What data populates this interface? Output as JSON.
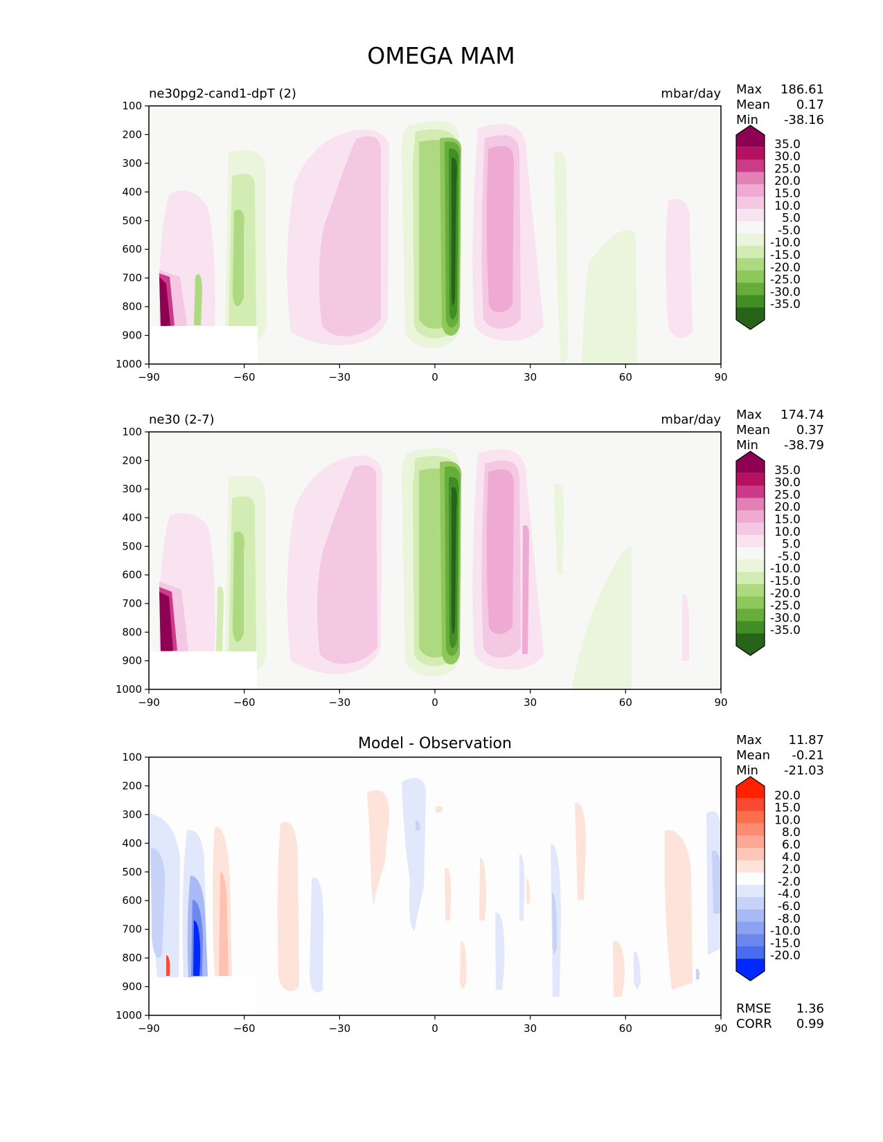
{
  "title": "OMEGA MAM",
  "chart_data": [
    {
      "type": "contour",
      "title": "ne30pg2-cand1-dpT (2)",
      "units": "mbar/day",
      "x_ticks": [
        "−90",
        "−60",
        "−30",
        "0",
        "30",
        "60",
        "90"
      ],
      "y_ticks": [
        "100",
        "200",
        "300",
        "400",
        "500",
        "600",
        "700",
        "800",
        "900",
        "1000"
      ],
      "xlim": [
        -90,
        90
      ],
      "ylim": [
        1000,
        100
      ],
      "stats": {
        "max_label": "Max",
        "max": "186.61",
        "mean_label": "Mean",
        "mean": "0.17",
        "min_label": "Min",
        "min": "-38.16"
      },
      "colorbar": {
        "labels": [
          "35.0",
          "30.0",
          "25.0",
          "20.0",
          "15.0",
          "10.0",
          "5.0",
          "-5.0",
          "-10.0",
          "-15.0",
          "-20.0",
          "-25.0",
          "-30.0",
          "-35.0"
        ],
        "colors": [
          "#8e0152",
          "#b5115e",
          "#cc3a8a",
          "#e181b6",
          "#eeaad2",
          "#f4c7e2",
          "#f9e3f0",
          "#f7f7f7",
          "#eaf5dc",
          "#d2ecb3",
          "#add981",
          "#8ec75c",
          "#68ad3c",
          "#3f8f26",
          "#276419"
        ]
      }
    },
    {
      "type": "contour",
      "title": "ne30 (2-7)",
      "units": "mbar/day",
      "x_ticks": [
        "−90",
        "−60",
        "−30",
        "0",
        "30",
        "60",
        "90"
      ],
      "y_ticks": [
        "100",
        "200",
        "300",
        "400",
        "500",
        "600",
        "700",
        "800",
        "900",
        "1000"
      ],
      "xlim": [
        -90,
        90
      ],
      "ylim": [
        1000,
        100
      ],
      "stats": {
        "max_label": "Max",
        "max": "174.74",
        "mean_label": "Mean",
        "mean": "0.37",
        "min_label": "Min",
        "min": "-38.79"
      },
      "colorbar": {
        "labels": [
          "35.0",
          "30.0",
          "25.0",
          "20.0",
          "15.0",
          "10.0",
          "5.0",
          "-5.0",
          "-10.0",
          "-15.0",
          "-20.0",
          "-25.0",
          "-30.0",
          "-35.0"
        ],
        "colors": [
          "#8e0152",
          "#b5115e",
          "#cc3a8a",
          "#e181b6",
          "#eeaad2",
          "#f4c7e2",
          "#f9e3f0",
          "#f7f7f7",
          "#eaf5dc",
          "#d2ecb3",
          "#add981",
          "#8ec75c",
          "#68ad3c",
          "#3f8f26",
          "#276419"
        ]
      }
    },
    {
      "type": "contour",
      "title": "Model - Observation",
      "x_ticks": [
        "−90",
        "−60",
        "−30",
        "0",
        "30",
        "60",
        "90"
      ],
      "y_ticks": [
        "100",
        "200",
        "300",
        "400",
        "500",
        "600",
        "700",
        "800",
        "900",
        "1000"
      ],
      "xlim": [
        -90,
        90
      ],
      "ylim": [
        1000,
        100
      ],
      "stats": {
        "max_label": "Max",
        "max": "11.87",
        "mean_label": "Mean",
        "mean": "-0.21",
        "min_label": "Min",
        "min": "-21.03"
      },
      "metrics": {
        "rmse_label": "RMSE",
        "rmse": "1.36",
        "corr_label": "CORR",
        "corr": "0.99"
      },
      "colorbar": {
        "labels": [
          "20.0",
          "15.0",
          "10.0",
          "8.0",
          "6.0",
          "4.0",
          "2.0",
          "-2.0",
          "-4.0",
          "-6.0",
          "-8.0",
          "-10.0",
          "-15.0",
          "-20.0"
        ],
        "colors": [
          "#ff2200",
          "#f84a32",
          "#fb6f4f",
          "#fd8b72",
          "#fda896",
          "#fec6b8",
          "#fee3db",
          "#fdfdfd",
          "#e2e8fb",
          "#c6d2f6",
          "#a8b9f3",
          "#8ba2f0",
          "#6c88ee",
          "#4a6cee",
          "#0028ff"
        ]
      }
    }
  ]
}
